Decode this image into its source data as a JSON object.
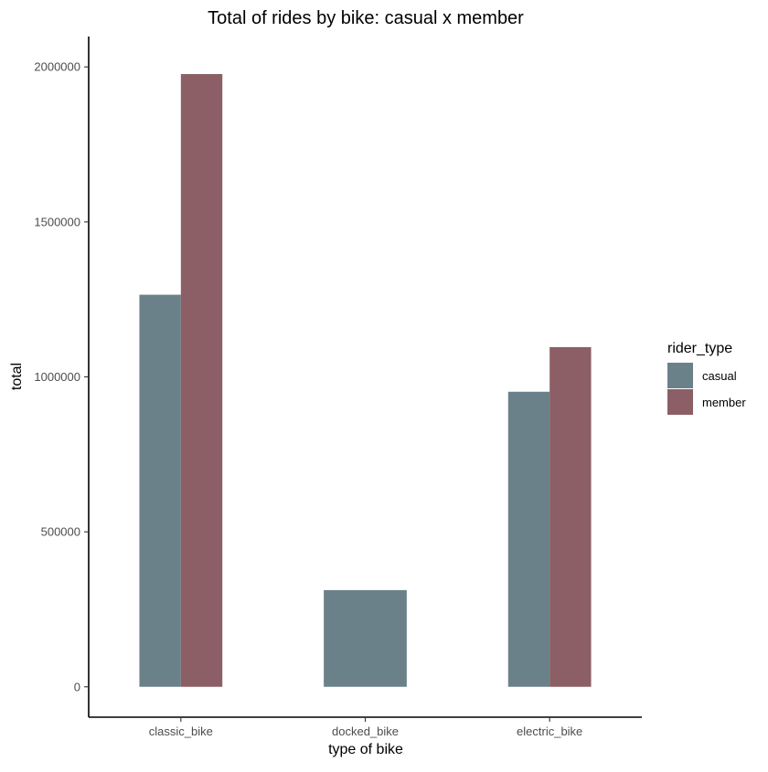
{
  "chart_data": {
    "type": "bar",
    "title": "Total of rides by bike: casual x member",
    "xlabel": "type of bike",
    "ylabel": "total",
    "categories": [
      "classic_bike",
      "docked_bike",
      "electric_bike"
    ],
    "series": [
      {
        "name": "casual",
        "color": "#6b818a",
        "values": [
          1265000,
          312000,
          952000
        ]
      },
      {
        "name": "member",
        "color": "#8b5f65",
        "values": [
          1977000,
          null,
          1096000
        ]
      }
    ],
    "ylim": [
      -98000,
      2098000
    ],
    "yticks": [
      0,
      500000,
      1000000,
      1500000,
      2000000
    ],
    "ytick_labels": [
      "0",
      "500000",
      "1000000",
      "1500000",
      "2000000"
    ],
    "grid": false,
    "legend": {
      "title": "rider_type",
      "position": "right"
    }
  }
}
